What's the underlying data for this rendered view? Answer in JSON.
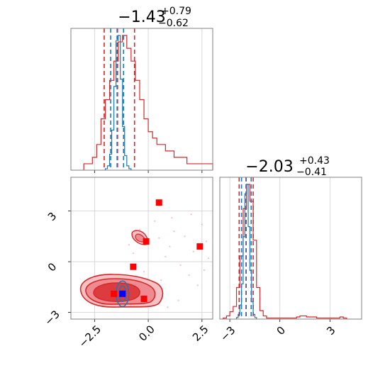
{
  "chart_data": [
    {
      "type": "histogram",
      "panel": "marginal-param-1",
      "title": {
        "median": "−1.43",
        "plus": "+0.79",
        "minus": "−0.62"
      },
      "xlim": [
        -3.6,
        3.0
      ],
      "series": [
        {
          "name": "",
          "color": "#d62728",
          "bins": [
            -3.0,
            -2.8,
            -2.6,
            -2.4,
            -2.2,
            -2.0,
            -1.8,
            -1.6,
            -1.4,
            -1.2,
            -1.0,
            -0.8,
            -0.6,
            -0.4,
            -0.2,
            0.0,
            0.2,
            0.4,
            0.6,
            0.8,
            1.0,
            1.2,
            1.4,
            1.6,
            1.8,
            2.0,
            2.2,
            2.4,
            2.6,
            2.8,
            3.0
          ],
          "counts": [
            1,
            1,
            2,
            4,
            8,
            11,
            14,
            17,
            20,
            21,
            19,
            17,
            14,
            11,
            8,
            6,
            5,
            4,
            4,
            3,
            3,
            2,
            2,
            2,
            1,
            1,
            1,
            1,
            1,
            1
          ],
          "quantiles": [
            -2.05,
            -1.43,
            -0.64
          ]
        },
        {
          "name": "",
          "color": "#1f77b4",
          "bins": [
            -2.0,
            -1.9,
            -1.8,
            -1.7,
            -1.6,
            -1.5,
            -1.4,
            -1.3,
            -1.2,
            -1.1,
            -1.0,
            -0.9,
            -0.8
          ],
          "counts": [
            2,
            6,
            22,
            55,
            115,
            178,
            185,
            125,
            60,
            20,
            6,
            2
          ],
          "quantiles": [
            -1.75,
            -1.45,
            -1.15
          ]
        }
      ]
    },
    {
      "type": "histogram",
      "panel": "marginal-param-2",
      "title": {
        "median": "−2.03",
        "plus": "+0.43",
        "minus": "−0.41"
      },
      "xlim": [
        -3.6,
        4.9
      ],
      "series": [
        {
          "name": "",
          "color": "#d62728",
          "bins": [
            -3.4,
            -3.2,
            -3.0,
            -2.8,
            -2.6,
            -2.4,
            -2.2,
            -2.0,
            -1.8,
            -1.6,
            -1.4,
            -1.2,
            -1.0,
            -0.8,
            -0.6,
            -0.4,
            -0.2,
            0.0,
            0.2,
            0.4,
            0.6,
            0.8,
            1.0,
            1.2,
            1.4,
            1.6,
            1.8,
            2.0,
            2.2,
            2.4,
            2.6,
            2.8,
            3.0,
            3.2,
            3.4,
            3.6,
            3.8,
            4.0
          ],
          "counts": [
            1,
            3,
            7,
            12,
            30,
            60,
            105,
            128,
            112,
            75,
            30,
            8,
            3,
            1,
            1,
            1,
            1,
            1,
            1,
            1,
            1,
            1,
            2,
            3,
            3,
            2,
            2,
            2,
            1,
            1,
            1,
            1,
            1,
            1,
            1,
            2,
            1
          ],
          "quantiles": [
            -2.44,
            -2.03,
            -1.6
          ]
        },
        {
          "name": "",
          "color": "#1f77b4",
          "bins": [
            -2.6,
            -2.5,
            -2.4,
            -2.3,
            -2.2,
            -2.1,
            -2.0,
            -1.9,
            -1.8,
            -1.7,
            -1.6,
            -1.5,
            -1.4
          ],
          "counts": [
            2,
            6,
            18,
            45,
            105,
            160,
            172,
            118,
            62,
            22,
            6,
            2
          ],
          "quantiles": [
            -2.3,
            -2.02,
            -1.72
          ]
        }
      ]
    },
    {
      "type": "contour",
      "panel": "joint",
      "xlim": [
        -3.6,
        3.0
      ],
      "ylim": [
        -3.4,
        5.0
      ],
      "x_ticks": [
        "−2.5",
        "0.0",
        "2.5"
      ],
      "y_ticks": [
        "−3",
        "0",
        "3"
      ],
      "red_markers": [
        [
          -1.6,
          -1.9
        ],
        [
          -0.2,
          -2.2
        ],
        [
          -0.7,
          -0.3
        ],
        [
          -0.1,
          1.2
        ],
        [
          0.5,
          3.5
        ],
        [
          2.4,
          0.9
        ]
      ],
      "blue_marker": [
        -1.2,
        -1.9
      ],
      "colors": {
        "red": "#d62728",
        "blue": "#1f77b4",
        "marker_red": "#ff0000",
        "marker_blue": "#0000ff"
      }
    }
  ],
  "x_axis_2_ticks": [
    "−3",
    "0",
    "3"
  ]
}
